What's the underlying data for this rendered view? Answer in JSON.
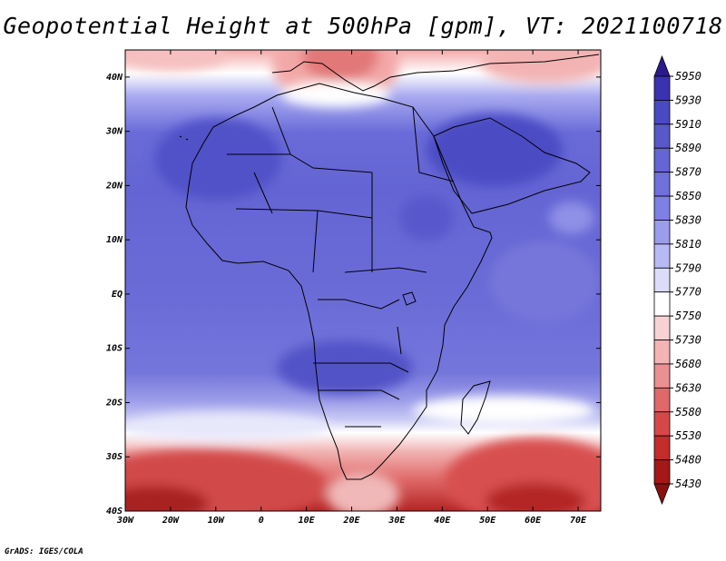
{
  "title": "Geopotential Height at 500hPa [gpm], VT: 2021100718",
  "credit": "GrADS: IGES/COLA",
  "map": {
    "lon_range": [
      -30,
      75
    ],
    "lat_range": [
      -40,
      45
    ],
    "x_ticks": [
      {
        "v": -30,
        "label": "30W"
      },
      {
        "v": -20,
        "label": "20W"
      },
      {
        "v": -10,
        "label": "10W"
      },
      {
        "v": 0,
        "label": "0"
      },
      {
        "v": 10,
        "label": "10E"
      },
      {
        "v": 20,
        "label": "20E"
      },
      {
        "v": 30,
        "label": "30E"
      },
      {
        "v": 40,
        "label": "40E"
      },
      {
        "v": 50,
        "label": "50E"
      },
      {
        "v": 60,
        "label": "60E"
      },
      {
        "v": 70,
        "label": "70E"
      }
    ],
    "y_ticks": [
      {
        "v": 40,
        "label": "40N"
      },
      {
        "v": 30,
        "label": "30N"
      },
      {
        "v": 20,
        "label": "20N"
      },
      {
        "v": 10,
        "label": "10N"
      },
      {
        "v": 0,
        "label": "EQ"
      },
      {
        "v": -10,
        "label": "10S"
      },
      {
        "v": -20,
        "label": "20S"
      },
      {
        "v": -30,
        "label": "30S"
      },
      {
        "v": -40,
        "label": "40S"
      }
    ]
  },
  "colorbar": {
    "levels": [
      "5950",
      "5930",
      "5910",
      "5890",
      "5870",
      "5850",
      "5830",
      "5810",
      "5790",
      "5770",
      "5750",
      "5730",
      "5680",
      "5630",
      "5580",
      "5530",
      "5480",
      "5430"
    ],
    "colors": [
      "#2b1a8e",
      "#3a33b0",
      "#4a49c4",
      "#5858cc",
      "#6565d6",
      "#7070dc",
      "#7f80e4",
      "#9a9cec",
      "#b8baf3",
      "#dcdcf8",
      "#ffffff",
      "#f8d2d2",
      "#f2b4b4",
      "#ea9090",
      "#e06868",
      "#d64848",
      "#c42c2c",
      "#a41818",
      "#8a1010"
    ]
  }
}
